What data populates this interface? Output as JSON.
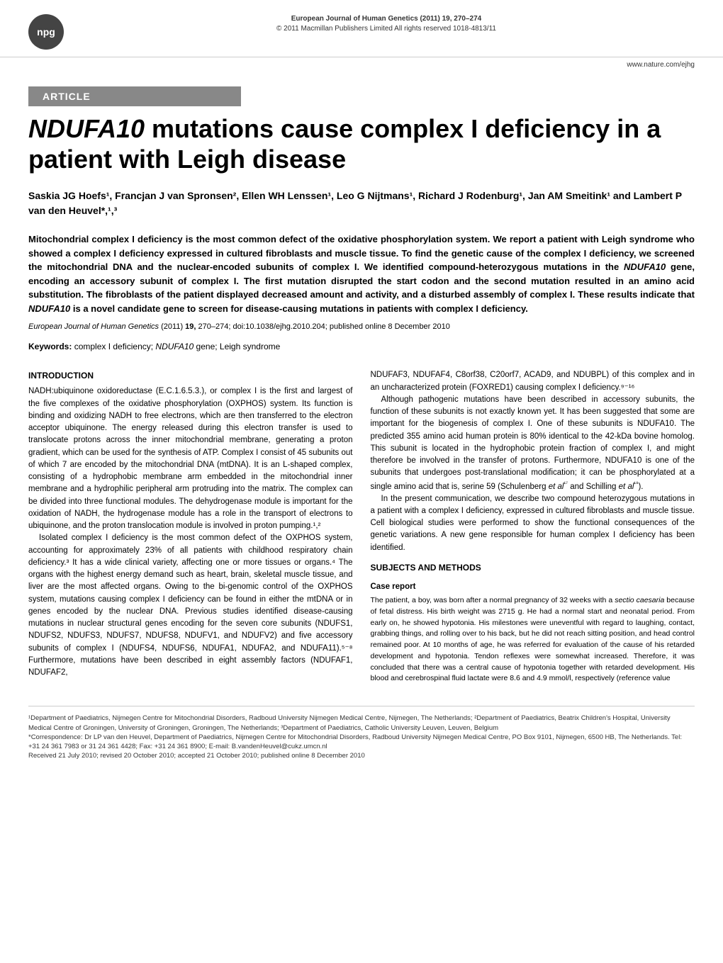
{
  "header": {
    "badge": "npg",
    "journal_title": "European Journal of Human Genetics (2011) 19, 270–274",
    "copyright": "© 2011 Macmillan Publishers Limited All rights reserved 1018-4813/11",
    "url": "www.nature.com/ejhg"
  },
  "article_label": "ARTICLE",
  "title_prefix": "NDUFA10",
  "title_rest": " mutations cause complex I deficiency in a patient with Leigh disease",
  "authors_line": "Saskia JG Hoefs¹, Francjan J van Spronsen², Ellen WH Lenssen¹, Leo G Nijtmans¹, Richard J Rodenburg¹, Jan AM Smeitink¹ and Lambert P van den Heuvel*,¹,³",
  "abstract": {
    "part1": "Mitochondrial complex I deficiency is the most common defect of the oxidative phosphorylation system. We report a patient with Leigh syndrome who showed a complex I deficiency expressed in cultured fibroblasts and muscle tissue. To find the genetic cause of the complex I deficiency, we screened the mitochondrial DNA and the nuclear-encoded subunits of complex I. We identified compound-heterozygous mutations in the ",
    "gene1": "NDUFA10",
    "part2": " gene, encoding an accessory subunit of complex I. The first mutation disrupted the start codon and the second mutation resulted in an amino acid substitution. The fibroblasts of the patient displayed decreased amount and activity, and a disturbed assembly of complex I. These results indicate that ",
    "gene2": "NDUFA10",
    "part3": " is a novel candidate gene to screen for disease-causing mutations in patients with complex I deficiency."
  },
  "citation": {
    "journal": "European Journal of Human Genetics",
    "year_vol": "(2011) ",
    "volume": "19,",
    "pages": " 270–274; doi:10.1038/ejhg.2010.204; published online 8 December 2010"
  },
  "keywords": {
    "label": "Keywords:",
    "text1": " complex I deficiency; ",
    "gene": "NDUFA10",
    "text2": " gene; Leigh syndrome"
  },
  "left_column": {
    "heading": "INTRODUCTION",
    "p1": "NADH:ubiquinone oxidoreductase (E.C.1.6.5.3.), or complex I is the first and largest of the five complexes of the oxidative phosphorylation (OXPHOS) system. Its function is binding and oxidizing NADH to free electrons, which are then transferred to the electron acceptor ubiquinone. The energy released during this electron transfer is used to translocate protons across the inner mitochondrial membrane, generating a proton gradient, which can be used for the synthesis of ATP. Complex I consist of 45 subunits out of which 7 are encoded by the mitochondrial DNA (mtDNA). It is an L-shaped complex, consisting of a hydrophobic membrane arm embedded in the mitochondrial inner membrane and a hydrophilic peripheral arm protruding into the matrix. The complex can be divided into three functional modules. The dehydrogenase module is important for the oxidation of NADH, the hydrogenase module has a role in the transport of electrons to ubiquinone, and the proton translocation module is involved in proton pumping.¹,²",
    "p2": "Isolated complex I deficiency is the most common defect of the OXPHOS system, accounting for approximately 23% of all patients with childhood respiratory chain deficiency.³ It has a wide clinical variety, affecting one or more tissues or organs.⁴ The organs with the highest energy demand such as heart, brain, skeletal muscle tissue, and liver are the most affected organs. Owing to the bi-genomic control of the OXPHOS system, mutations causing complex I deficiency can be found in either the mtDNA or in genes encoded by the nuclear DNA. Previous studies identified disease-causing mutations in nuclear structural genes encoding for the seven core subunits (NDUFS1, NDUFS2, NDUFS3, NDUFS7, NDUFS8, NDUFV1, and NDUFV2) and five accessory subunits of complex I (NDUFS4, NDUFS6, NDUFA1, NDUFA2, and NDUFA11).⁵⁻⁸ Furthermore, mutations have been described in eight assembly factors (NDUFAF1, NDUFAF2,"
  },
  "right_column": {
    "p1": "NDUFAF3, NDUFAF4, C8orf38, C20orf7, ACAD9, and NDUBPL) of this complex and in an uncharacterized protein (FOXRED1) causing complex I deficiency.⁹⁻¹⁶",
    "p2": "Although pathogenic mutations have been described in accessory subunits, the function of these subunits is not exactly known yet. It has been suggested that some are important for the biogenesis of complex I. One of these subunits is NDUFA10. The predicted 355 amino acid human protein is 80% identical to the 42-kDa bovine homolog. This subunit is located in the hydrophobic protein fraction of complex I, and might therefore be involved in the transfer of protons. Furthermore, NDUFA10 is one of the subunits that undergoes post-translational modification; it can be phosphorylated at a single amino acid that is, serine 59 (Schulenberg ",
    "p2_ref1": "et al",
    "p2_sup1": "¹⁷",
    "p2_mid": " and Schilling ",
    "p2_ref2": "et al",
    "p2_sup2": "¹⁸",
    "p2_end": ").",
    "p3": "In the present communication, we describe two compound heterozygous mutations in a patient with a complex I deficiency, expressed in cultured fibroblasts and muscle tissue. Cell biological studies were performed to show the functional consequences of the genetic variations. A new gene responsible for human complex I deficiency has been identified.",
    "heading2": "SUBJECTS AND METHODS",
    "subheading": "Case report",
    "p4_start": "The patient, a boy, was born after a normal pregnancy of 32 weeks with a ",
    "p4_italic": "sectio caesaria",
    "p4_rest": " because of fetal distress. His birth weight was 2715 g. He had a normal start and neonatal period. From early on, he showed hypotonia. His milestones were uneventful with regard to laughing, contact, grabbing things, and rolling over to his back, but he did not reach sitting position, and head control remained poor. At 10 months of age, he was referred for evaluation of the cause of his retarded development and hypotonia. Tendon reflexes were somewhat increased. Therefore, it was concluded that there was a central cause of hypotonia together with retarded development. His blood and cerebrospinal fluid lactate were 8.6 and 4.9 mmol/l, respectively (reference value"
  },
  "footer": {
    "affiliations": "¹Department of Paediatrics, Nijmegen Centre for Mitochondrial Disorders, Radboud University Nijmegen Medical Centre, Nijmegen, The Netherlands; ²Department of Paediatrics, Beatrix Children's Hospital, University Medical Centre of Groningen, University of Groningen, Groningen, The Netherlands; ³Department of Paediatrics, Catholic University Leuven, Leuven, Belgium",
    "correspondence": "*Correspondence: Dr LP van den Heuvel, Department of Paediatrics, Nijmegen Centre for Mitochondrial Disorders, Radboud University Nijmegen Medical Centre, PO Box 9101, Nijmegen, 6500 HB, The Netherlands. Tel: +31 24 361 7983 or 31 24 361 4428; Fax: +31 24 361 8900; E-mail: B.vandenHeuvel@cukz.umcn.nl",
    "dates": "Received 21 July 2010; revised 20 October 2010; accepted 21 October 2010; published online 8 December 2010"
  },
  "style": {
    "background_color": "#ffffff",
    "text_color": "#000000",
    "article_label_bg": "#888888",
    "article_label_color": "#ffffff",
    "badge_bg": "#444444",
    "badge_color": "#ffffff",
    "border_color": "#cccccc",
    "title_fontsize": 36,
    "body_fontsize": 11.5,
    "abstract_fontsize": 13,
    "footer_fontsize": 9.5
  }
}
